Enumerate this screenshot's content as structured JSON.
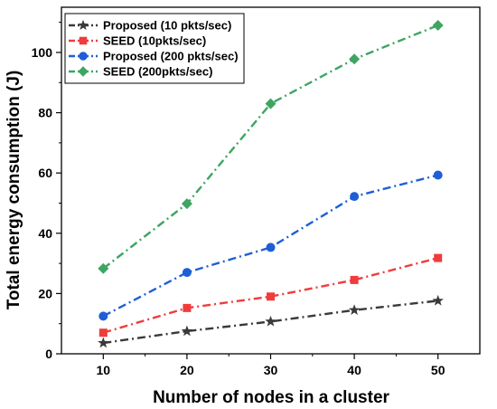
{
  "chart_data": {
    "type": "line",
    "title": "",
    "xlabel": "Number of nodes in a cluster",
    "ylabel": "Total energy consumption (J)",
    "x": [
      10,
      20,
      30,
      40,
      50
    ],
    "xticks": [
      10,
      20,
      30,
      40,
      50
    ],
    "yticks": [
      0,
      20,
      40,
      60,
      80,
      100
    ],
    "xlim": [
      5,
      55
    ],
    "ylim": [
      0,
      115
    ],
    "grid": false,
    "legend_position": "top-left",
    "series": [
      {
        "name": "Proposed (10 pkts/sec)",
        "values": [
          3.6,
          7.5,
          10.7,
          14.5,
          17.6
        ],
        "color": "#3a3a3a",
        "marker": "star"
      },
      {
        "name": "SEED (10pkts/sec)",
        "values": [
          7.0,
          15.2,
          19.0,
          24.5,
          31.8
        ],
        "color": "#f03c3c",
        "marker": "square"
      },
      {
        "name": "Proposed (200 pkts/sec)",
        "values": [
          12.5,
          27.0,
          35.3,
          52.2,
          59.3
        ],
        "color": "#1f5fd6",
        "marker": "circle"
      },
      {
        "name": "SEED (200pkts/sec)",
        "values": [
          28.3,
          49.8,
          83.0,
          97.8,
          109.0
        ],
        "color": "#3ea563",
        "marker": "diamond"
      }
    ]
  }
}
